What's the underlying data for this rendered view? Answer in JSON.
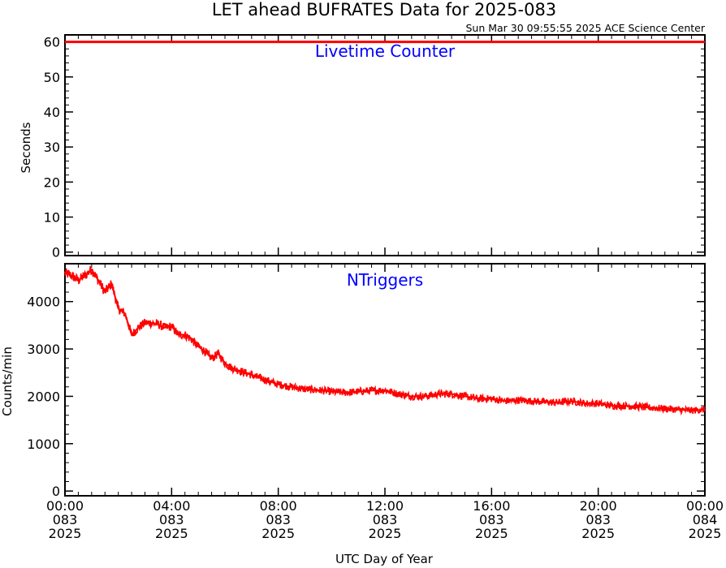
{
  "title": "LET ahead BUFRATES Data for 2025-083",
  "timestamp": "Sun Mar 30 09:55:55 2025 ACE Science Center",
  "xlabel": "UTC Day of Year",
  "colors": {
    "series": "#ff0000",
    "panel_title": "#0000ff",
    "axes": "#000000"
  },
  "chart_data": [
    {
      "type": "line",
      "title": "Livetime Counter",
      "ylabel": "Seconds",
      "ylim": [
        -1,
        62
      ],
      "yticks": [
        0,
        10,
        20,
        30,
        40,
        50,
        60
      ],
      "ytick_labels": [
        "0",
        "10",
        "20",
        "30",
        "40",
        "50",
        "60"
      ],
      "x_hours": [
        0,
        24
      ],
      "series": [
        {
          "x": [
            0,
            24
          ],
          "values": [
            60,
            60
          ]
        }
      ]
    },
    {
      "type": "line",
      "title": "NTriggers",
      "ylabel": "Counts/min",
      "ylim": [
        -100,
        4800
      ],
      "yticks": [
        0,
        1000,
        2000,
        3000,
        4000
      ],
      "ytick_labels": [
        "0",
        "1000",
        "2000",
        "3000",
        "4000"
      ],
      "x": [
        0,
        0.25,
        0.5,
        0.75,
        1.0,
        1.25,
        1.5,
        1.75,
        2.0,
        2.25,
        2.5,
        2.75,
        3.0,
        3.25,
        3.5,
        3.75,
        4.0,
        4.25,
        4.5,
        4.75,
        5.0,
        5.25,
        5.5,
        5.75,
        6.0,
        6.25,
        6.5,
        6.75,
        7.0,
        7.5,
        8.0,
        8.5,
        9.0,
        9.5,
        10.0,
        10.5,
        11.0,
        11.5,
        12.0,
        12.5,
        13.0,
        13.5,
        14.0,
        14.5,
        15.0,
        15.5,
        16.0,
        16.5,
        17.0,
        17.5,
        18.0,
        18.5,
        19.0,
        19.5,
        20.0,
        20.5,
        21.0,
        21.5,
        22.0,
        22.5,
        23.0,
        23.5,
        24.0
      ],
      "values": [
        4600,
        4550,
        4450,
        4550,
        4680,
        4450,
        4200,
        4380,
        3850,
        3750,
        3300,
        3450,
        3550,
        3550,
        3520,
        3450,
        3480,
        3300,
        3300,
        3200,
        3050,
        2950,
        2800,
        2900,
        2700,
        2600,
        2550,
        2500,
        2450,
        2350,
        2250,
        2200,
        2150,
        2130,
        2100,
        2080,
        2100,
        2120,
        2130,
        2050,
        2000,
        2000,
        2050,
        2050,
        2000,
        1950,
        1950,
        1900,
        1920,
        1900,
        1880,
        1870,
        1900,
        1850,
        1850,
        1800,
        1800,
        1780,
        1760,
        1740,
        1720,
        1700,
        1720
      ],
      "x_hours": [
        0,
        24
      ],
      "xticks": [
        {
          "hour": 0,
          "time": "00:00",
          "day": "083",
          "year": "2025"
        },
        {
          "hour": 4,
          "time": "04:00",
          "day": "083",
          "year": "2025"
        },
        {
          "hour": 8,
          "time": "08:00",
          "day": "083",
          "year": "2025"
        },
        {
          "hour": 12,
          "time": "12:00",
          "day": "083",
          "year": "2025"
        },
        {
          "hour": 16,
          "time": "16:00",
          "day": "083",
          "year": "2025"
        },
        {
          "hour": 20,
          "time": "20:00",
          "day": "083",
          "year": "2025"
        },
        {
          "hour": 24,
          "time": "00:00",
          "day": "084",
          "year": "2025"
        }
      ]
    }
  ]
}
